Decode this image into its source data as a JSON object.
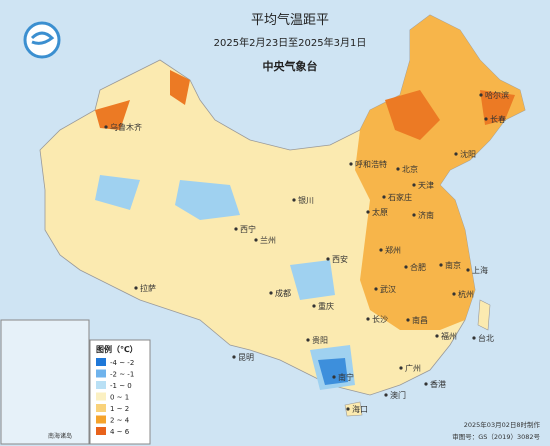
{
  "header": {
    "title": "平均气温距平",
    "period": "2025年2月23日至2025年3月1日",
    "issuer": "中央气象台"
  },
  "legend": {
    "title": "图例（℃）",
    "items": [
      {
        "label": "-4 ~ -2",
        "color": "#1f78d8"
      },
      {
        "label": "-2 ~ -1",
        "color": "#6fb3ec"
      },
      {
        "label": "-1 ~ 0",
        "color": "#b9e0f5"
      },
      {
        "label": "0 ~ 1",
        "color": "#fbf0c2"
      },
      {
        "label": "1 ~ 2",
        "color": "#f9d27a"
      },
      {
        "label": "2 ~ 4",
        "color": "#f5a32b"
      },
      {
        "label": "4 ~ 6",
        "color": "#e8621b"
      }
    ]
  },
  "inset": {
    "label": "南海诸岛"
  },
  "cities": [
    "乌鲁木齐",
    "哈尔滨",
    "长春",
    "沈阳",
    "呼和浩特",
    "北京",
    "天津",
    "石家庄",
    "银川",
    "太原",
    "济南",
    "西宁",
    "兰州",
    "郑州",
    "西安",
    "合肥",
    "南京",
    "上海",
    "拉萨",
    "成都",
    "重庆",
    "武汉",
    "杭州",
    "长沙",
    "南昌",
    "福州",
    "台北",
    "贵阳",
    "昆明",
    "广州",
    "南宁",
    "香港",
    "澳门",
    "海口"
  ],
  "footer": {
    "made": "2025年03月02日8时制作",
    "approval": "审图号：GS（2019）3082号"
  }
}
